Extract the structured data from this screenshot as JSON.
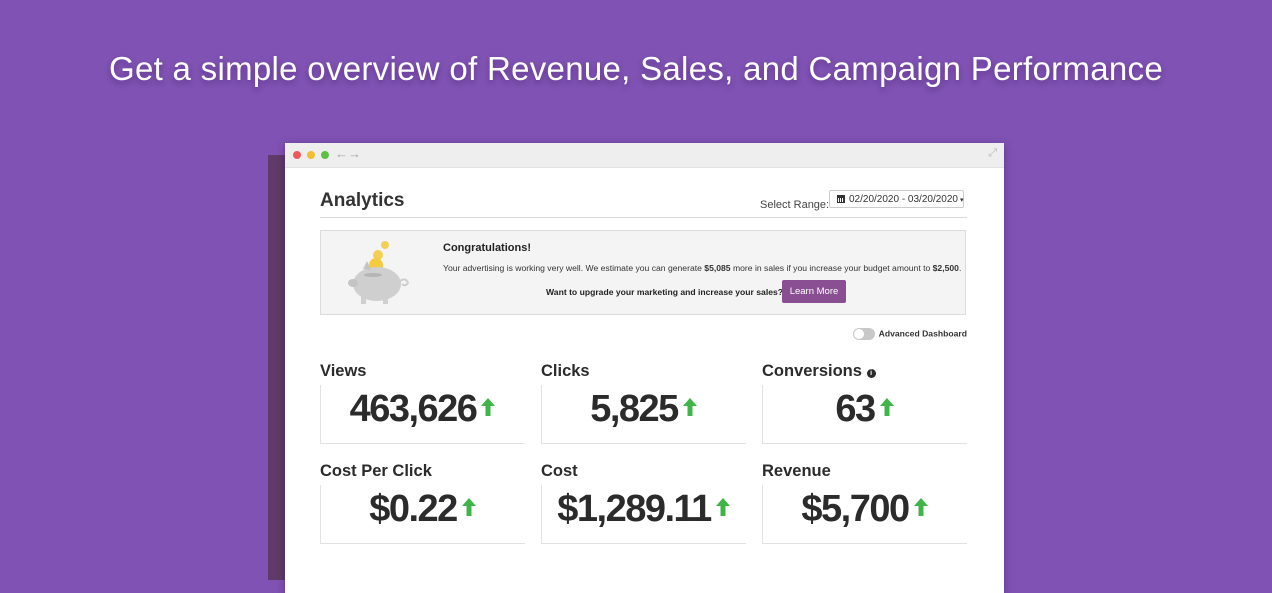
{
  "headline": "Get a simple overview of Revenue, Sales, and Campaign Performance",
  "colors": {
    "background": "#7f52b3",
    "accent_button": "#8a4f93",
    "up_arrow": "#3fb548"
  },
  "browser": {
    "nav_back_icon": "arrow-left-icon",
    "nav_forward_icon": "arrow-right-icon",
    "nav_back_glyph": "←",
    "nav_forward_glyph": "→",
    "expand_glyph": "⤢"
  },
  "analytics": {
    "title": "Analytics",
    "range_label": "Select Range:",
    "range_value": "02/20/2020 - 03/20/2020",
    "range_caret": "▾"
  },
  "notice": {
    "title": "Congratulations!",
    "body_prefix": "Your advertising is working very well. We estimate you can generate ",
    "body_amount": "$5,085",
    "body_middle": " more in sales if you increase your budget amount to ",
    "body_budget": "$2,500",
    "body_suffix": ".",
    "upgrade_prompt": "Want to upgrade your marketing and increase your sales?",
    "button_label": "Learn More"
  },
  "advanced_dashboard": {
    "label": "Advanced Dashboard",
    "enabled": false
  },
  "metrics": [
    {
      "label": "Views",
      "value": "463,626",
      "trend": "up"
    },
    {
      "label": "Clicks",
      "value": "5,825",
      "trend": "up"
    },
    {
      "label": "Conversions",
      "value": "63",
      "trend": "up",
      "info": "i"
    },
    {
      "label": "Cost Per Click",
      "value": "$0.22",
      "trend": "up"
    },
    {
      "label": "Cost",
      "value": "$1,289.11",
      "trend": "up"
    },
    {
      "label": "Revenue",
      "value": "$5,700",
      "trend": "up"
    }
  ]
}
